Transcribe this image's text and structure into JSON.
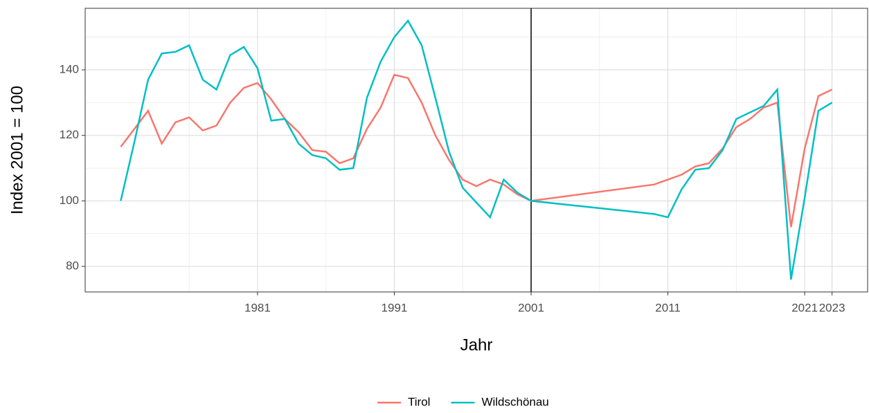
{
  "chart_data": {
    "type": "line",
    "x_label": "Jahr",
    "y_label": "Index 2001 = 100",
    "x": [
      1971,
      1972,
      1973,
      1974,
      1975,
      1976,
      1977,
      1978,
      1979,
      1980,
      1981,
      1982,
      1983,
      1984,
      1985,
      1986,
      1987,
      1988,
      1989,
      1990,
      1991,
      1992,
      1993,
      1994,
      1995,
      1996,
      1997,
      1998,
      1999,
      2000,
      2001,
      2010,
      2011,
      2012,
      2013,
      2014,
      2015,
      2016,
      2017,
      2018,
      2019,
      2020,
      2021,
      2022,
      2023
    ],
    "series": [
      {
        "name": "Tirol",
        "color": "#f8766d",
        "values": [
          116.5,
          122,
          127.5,
          117.5,
          124,
          125.5,
          121.5,
          123,
          130,
          134.5,
          136,
          131,
          125,
          121,
          115.5,
          115,
          111.5,
          113,
          122,
          128.5,
          138.5,
          137.5,
          130,
          120,
          112.5,
          106.5,
          104.5,
          106.5,
          105,
          102,
          100,
          105,
          106.5,
          108,
          110.5,
          111.5,
          116,
          122.5,
          125,
          128.5,
          130,
          92,
          116,
          132,
          134
        ]
      },
      {
        "name": "Wildschönau",
        "color": "#00bfc4",
        "values": [
          100,
          118,
          137,
          145,
          145.5,
          147.5,
          137,
          134,
          144.5,
          147,
          140.5,
          124.5,
          125,
          117.5,
          114,
          113,
          109.5,
          110,
          131.5,
          142.5,
          150,
          155,
          147.5,
          131.5,
          115,
          104,
          99.5,
          95,
          106.5,
          102.5,
          100,
          96,
          95,
          103.5,
          109.5,
          110,
          115.5,
          125,
          127,
          129,
          134,
          76,
          101,
          127.5,
          130
        ]
      }
    ],
    "xlim": [
      1968.4,
      2025.6
    ],
    "xticks": [
      1981,
      1991,
      2001,
      2011,
      2021,
      2023
    ],
    "x_minor_ticks": [
      1976,
      1986,
      1996,
      2006,
      2016
    ],
    "ylim": [
      72.2,
      158.8
    ],
    "yticks": [
      80,
      100,
      120,
      140
    ],
    "y_minor_ticks": [
      90,
      110,
      130,
      150
    ],
    "vline": 2001,
    "grid": true,
    "legend": "bottom"
  }
}
